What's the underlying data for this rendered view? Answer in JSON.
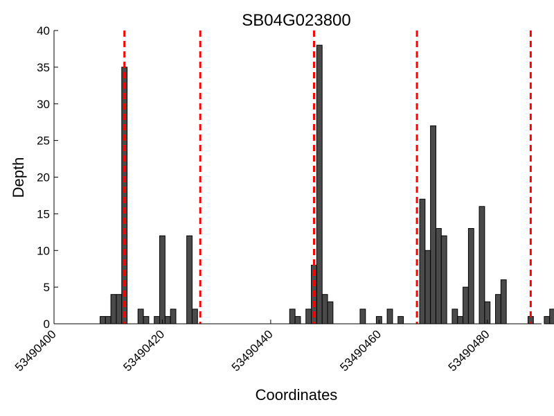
{
  "chart_data": {
    "type": "bar",
    "title": "SB04G023800",
    "xlabel": "Coordinates",
    "ylabel": "Depth",
    "xlim": [
      53490400,
      53490490
    ],
    "ylim": [
      0,
      40
    ],
    "x_ticks": [
      53490400,
      53490420,
      53490440,
      53490460,
      53490480
    ],
    "y_ticks": [
      0,
      5,
      10,
      15,
      20,
      25,
      30,
      35,
      40
    ],
    "bar_width": 1,
    "bar_color": "#4a4a4a",
    "marker_color": "#ff0000",
    "grid": false,
    "x": [
      53490409,
      53490410,
      53490411,
      53490412,
      53490413,
      53490416,
      53490417,
      53490419,
      53490420,
      53490421,
      53490422,
      53490425,
      53490426,
      53490444,
      53490445,
      53490447,
      53490448,
      53490449,
      53490450,
      53490451,
      53490452,
      53490457,
      53490460,
      53490462,
      53490464,
      53490468,
      53490469,
      53490470,
      53490471,
      53490472,
      53490473,
      53490474,
      53490475,
      53490476,
      53490477,
      53490478,
      53490479,
      53490480,
      53490482,
      53490483,
      53490485,
      53490488,
      53490491,
      53490492
    ],
    "values": [
      1,
      1,
      4,
      4,
      35,
      2,
      1,
      1,
      12,
      1,
      2,
      12,
      2,
      2,
      1,
      2,
      8,
      38,
      4,
      3,
      0,
      2,
      1,
      2,
      1,
      17,
      10,
      27,
      13,
      12,
      0,
      2,
      1,
      5,
      13,
      0,
      16,
      3,
      4,
      6,
      0,
      1,
      1,
      2
    ],
    "marker_lines": [
      53490413,
      53490427,
      53490448,
      53490467,
      53490488
    ]
  }
}
